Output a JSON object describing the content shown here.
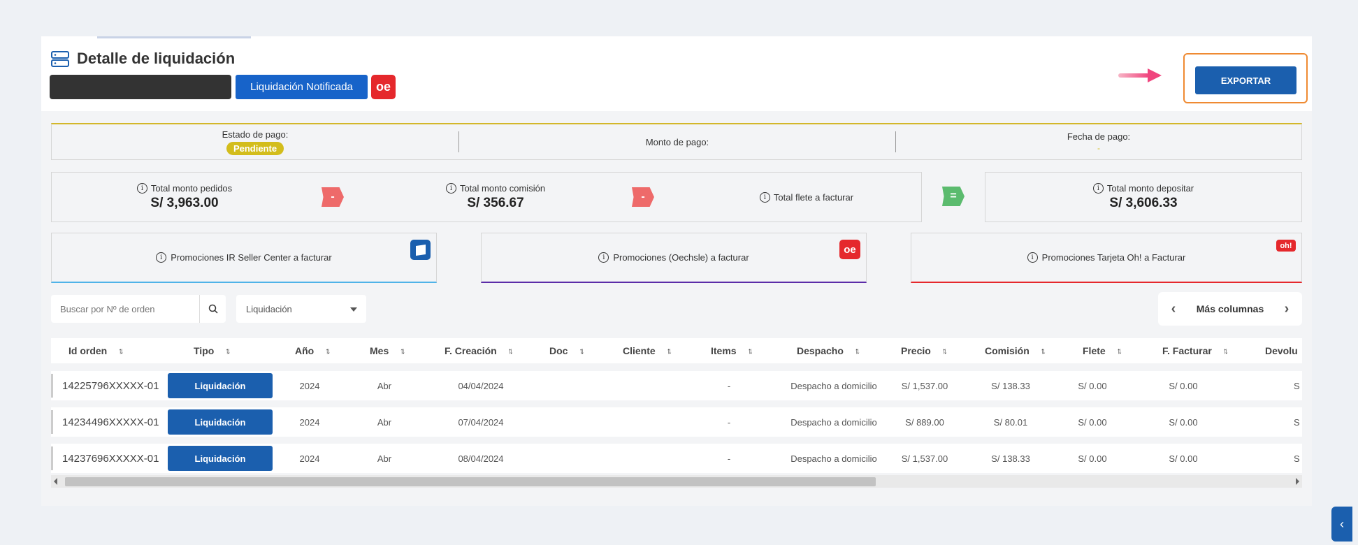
{
  "header": {
    "title": "Detalle de liquidación",
    "status_button": "Liquidación Notificada",
    "store_logo": "oe",
    "export_button": "EXPORTAR"
  },
  "payment": {
    "estado_label": "Estado de pago:",
    "estado_value": "Pendiente",
    "monto_label": "Monto de pago:",
    "fecha_label": "Fecha de pago:",
    "fecha_value": "-"
  },
  "totals": {
    "pedidos_label": "Total monto pedidos",
    "pedidos_value": "S/ 3,963.00",
    "comision_label": "Total monto comisión",
    "comision_value": "S/ 356.67",
    "flete_label": "Total flete a facturar",
    "depositar_label": "Total monto depositar",
    "depositar_value": "S/ 3,606.33",
    "op_minus": "-",
    "op_equals": "="
  },
  "promos": [
    {
      "label": "Promociones IR Seller Center a facturar",
      "color": "#4fb3e8"
    },
    {
      "label": "Promociones (Oechsle) a facturar",
      "color": "#5b2ca8",
      "logo": "oe"
    },
    {
      "label": "Promociones Tarjeta Oh! a Facturar",
      "color": "#e5282c",
      "logo": "oh!"
    }
  ],
  "filters": {
    "search_placeholder": "Buscar por Nº de orden",
    "select_value": "Liquidación",
    "more_columns": "Más columnas"
  },
  "table": {
    "headers": [
      "Id orden",
      "Tipo",
      "Año",
      "Mes",
      "F. Creación",
      "Doc",
      "Cliente",
      "Items",
      "Despacho",
      "Precio",
      "Comisión",
      "Flete",
      "F. Facturar",
      "Devolu"
    ],
    "rows": [
      {
        "id": "14225796XXXXX-01",
        "tipo": "Liquidación",
        "anio": "2024",
        "mes": "Abr",
        "fecha": "04/04/2024",
        "items": "-",
        "despacho": "Despacho a domicilio",
        "precio": "S/ 1,537.00",
        "comision": "S/ 138.33",
        "flete": "S/ 0.00",
        "facturar": "S/ 0.00",
        "devol": "S"
      },
      {
        "id": "14234496XXXXX-01",
        "tipo": "Liquidación",
        "anio": "2024",
        "mes": "Abr",
        "fecha": "07/04/2024",
        "items": "-",
        "despacho": "Despacho a domicilio",
        "precio": "S/ 889.00",
        "comision": "S/ 80.01",
        "flete": "S/ 0.00",
        "facturar": "S/ 0.00",
        "devol": "S"
      },
      {
        "id": "14237696XXXXX-01",
        "tipo": "Liquidación",
        "anio": "2024",
        "mes": "Abr",
        "fecha": "08/04/2024",
        "items": "-",
        "despacho": "Despacho a domicilio",
        "precio": "S/ 1,537.00",
        "comision": "S/ 138.33",
        "flete": "S/ 0.00",
        "facturar": "S/ 0.00",
        "devol": "S"
      }
    ]
  },
  "colors": {
    "primary": "#1b5fae",
    "export_highlight": "#ef8a32",
    "pending": "#d3bd1c",
    "brand_red": "#e5282c",
    "arrow": "#f0457e"
  },
  "icons": {
    "title": "server-stack-icon",
    "search": "search-icon",
    "info": "info-icon",
    "sort": "sort-arrows-icon",
    "prev": "chevron-left-icon",
    "next": "chevron-right-icon",
    "side": "chevron-left-icon",
    "pointer": "arrow-right-icon"
  }
}
